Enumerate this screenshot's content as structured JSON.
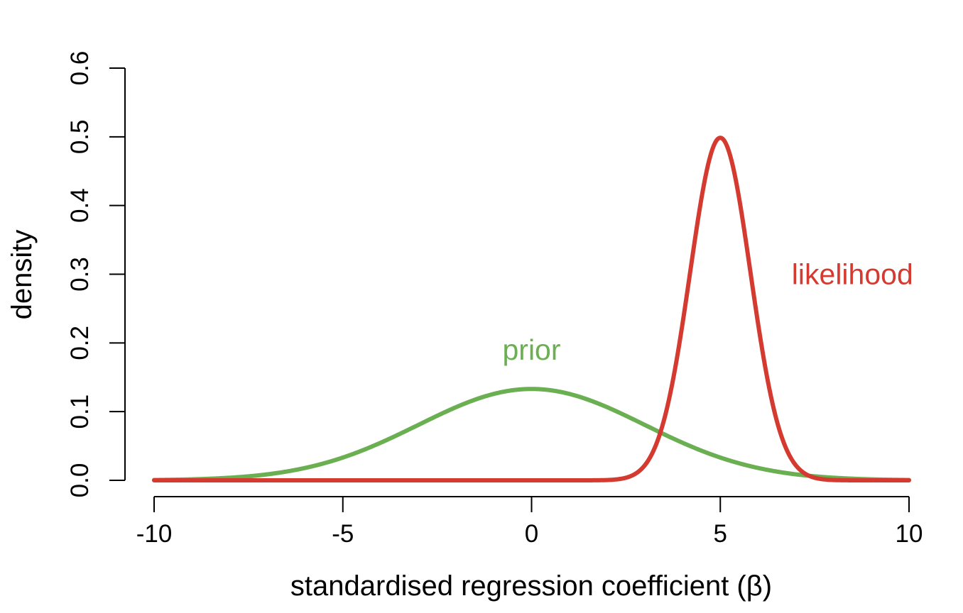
{
  "chart_data": {
    "type": "line",
    "title": "",
    "xlabel": "standardised regression coefficient (β)",
    "ylabel": "density",
    "xlim": [
      -10,
      10
    ],
    "ylim": [
      0,
      0.6
    ],
    "x_ticks": [
      -10,
      -5,
      0,
      5,
      10
    ],
    "x_tick_labels": [
      "-10",
      "-5",
      "0",
      "5",
      "10"
    ],
    "y_ticks": [
      0.0,
      0.1,
      0.2,
      0.3,
      0.4,
      0.5,
      0.6
    ],
    "y_tick_labels": [
      "0.0",
      "0.1",
      "0.2",
      "0.3",
      "0.4",
      "0.5",
      "0.6"
    ],
    "grid": false,
    "legend": "none",
    "series": [
      {
        "name": "prior",
        "color": "#6aaf51",
        "distribution": "normal",
        "mean": 0,
        "sd": 3,
        "label_at": {
          "x": 0,
          "y": 0.19
        }
      },
      {
        "name": "likelihood",
        "color": "#d43a2f",
        "distribution": "normal",
        "mean": 5,
        "sd": 0.8,
        "label_at": {
          "x": 8.5,
          "y": 0.3
        }
      }
    ]
  }
}
